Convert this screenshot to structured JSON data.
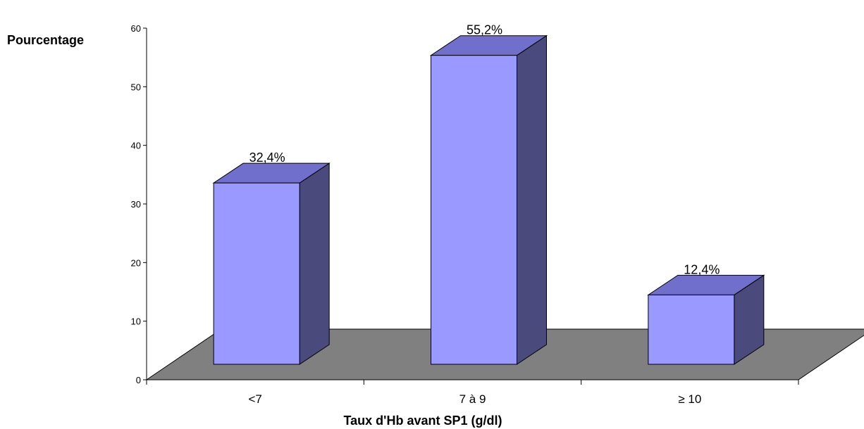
{
  "chart_data": {
    "type": "bar",
    "style": "3d",
    "ylabel": "Pourcentage",
    "xlabel": "Taux d'Hb avant SP1 (g/dl)",
    "categories": [
      "<7",
      "7 à 9",
      "≥ 10"
    ],
    "values": [
      32.4,
      55.2,
      12.4
    ],
    "data_labels": [
      "32,4%",
      "55,2%",
      "12,4%"
    ],
    "ylim": [
      0,
      60
    ],
    "yticks": [
      0,
      10,
      20,
      30,
      40,
      50,
      60
    ],
    "grid": false,
    "legend": "none",
    "colors": {
      "bar_front": "#9999ff",
      "bar_top": "#7070cc",
      "bar_side": "#4a4a7c",
      "floor": "#808080",
      "outline": "#000000"
    }
  }
}
